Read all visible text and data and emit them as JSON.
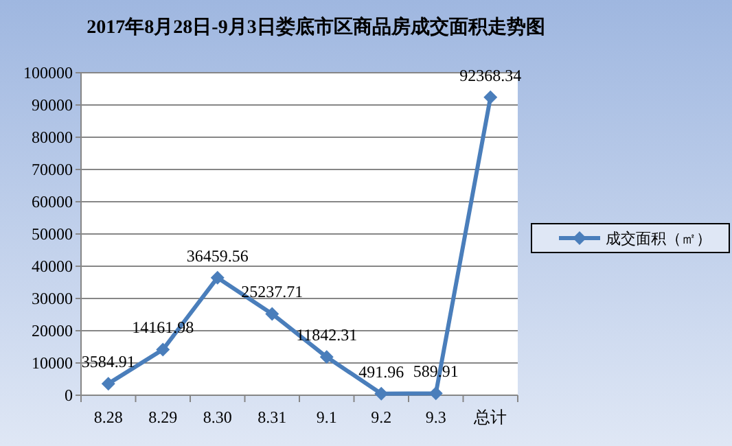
{
  "chart_data": {
    "type": "line",
    "title": "2017年8月28日-9月3日娄底市区商品房成交面积走势图",
    "categories": [
      "8.28",
      "8.29",
      "8.30",
      "8.31",
      "9.1",
      "9.2",
      "9.3",
      "总计"
    ],
    "series": [
      {
        "name": "成交面积（㎡）",
        "color": "#4a7ebb",
        "values": [
          3584.91,
          14161.98,
          36459.56,
          25237.71,
          11842.31,
          491.96,
          589.91,
          92368.34
        ]
      }
    ],
    "ylim": [
      0,
      100000
    ],
    "yticks": [
      0,
      10000,
      20000,
      30000,
      40000,
      50000,
      60000,
      70000,
      80000,
      90000,
      100000
    ],
    "grid": "y",
    "legend": "right",
    "marker": "diamond",
    "line_style": "solid",
    "data_labels": true
  }
}
